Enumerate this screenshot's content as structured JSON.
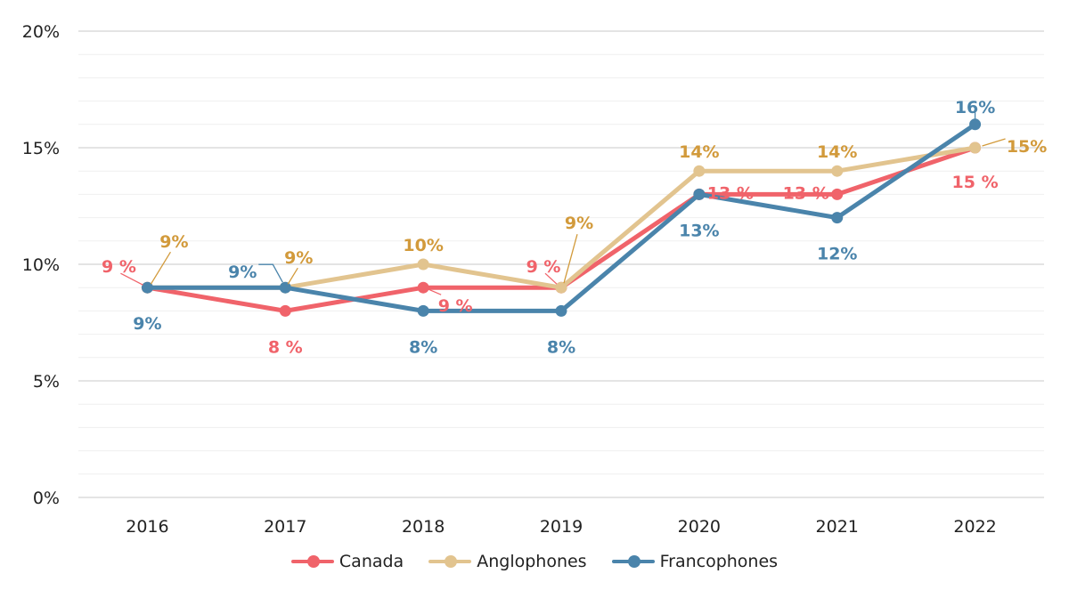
{
  "chart_data": {
    "type": "line",
    "categories": [
      "2016",
      "2017",
      "2018",
      "2019",
      "2020",
      "2021",
      "2022"
    ],
    "ylim": [
      0,
      20
    ],
    "yticks": [
      0,
      5,
      10,
      15,
      20
    ],
    "ytick_labels": [
      "0%",
      "5%",
      "10%",
      "15%",
      "20%"
    ],
    "grid": true,
    "legend_position": "bottom",
    "series": [
      {
        "name": "Canada",
        "color": "#f0636a",
        "values": [
          9,
          8,
          9,
          9,
          13,
          13,
          15
        ],
        "labels": [
          "9 %",
          "8 %",
          "9 %",
          "9 %",
          "13 %",
          "13 %",
          "15 %"
        ]
      },
      {
        "name": "Anglophones",
        "color": "#e2c48f",
        "label_color": "#d29a3b",
        "values": [
          9,
          9,
          10,
          9,
          14,
          14,
          15
        ],
        "labels": [
          "9%",
          "9%",
          "10%",
          "9%",
          "14%",
          "14%",
          "15%"
        ]
      },
      {
        "name": "Francophones",
        "color": "#4a84ab",
        "values": [
          9,
          9,
          8,
          8,
          13,
          12,
          16
        ],
        "labels": [
          "9%",
          "9%",
          "8%",
          "8%",
          "13%",
          "12%",
          "16%"
        ]
      }
    ]
  }
}
